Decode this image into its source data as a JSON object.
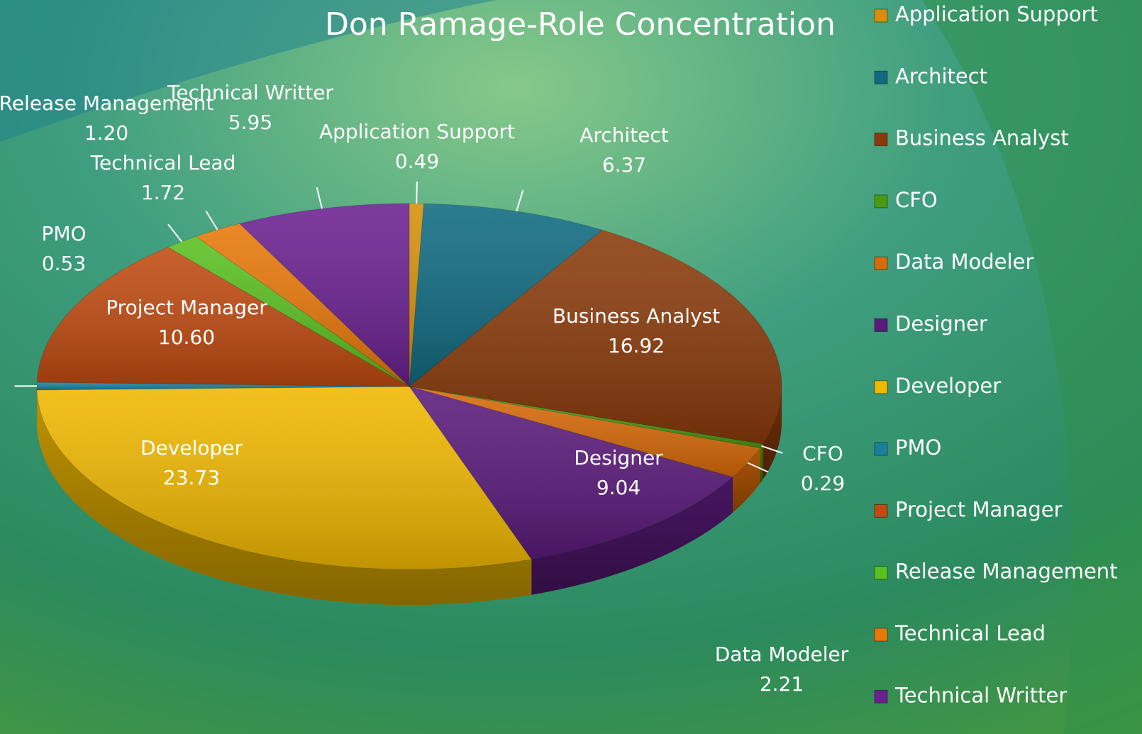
{
  "chart_data": {
    "type": "pie",
    "title": "Don Ramage-Role Concentration",
    "categories": [
      "Application Support",
      "Architect",
      "Business Analyst",
      "CFO",
      "Data Modeler",
      "Designer",
      "Developer",
      "PMO",
      "Project Manager",
      "Release Management",
      "Technical Lead",
      "Technical Writter"
    ],
    "values": [
      0.49,
      6.37,
      16.92,
      0.29,
      2.21,
      9.04,
      23.73,
      0.53,
      10.6,
      1.2,
      1.72,
      5.95
    ],
    "value_labels": [
      "0.49",
      "6.37",
      "16.92",
      "0.29",
      "2.21",
      "9.04",
      "23.73",
      "0.53",
      "10.60",
      "1.20",
      "1.72",
      "5.95"
    ],
    "colors": [
      "#d4900a",
      "#0f6a80",
      "#8a3a0a",
      "#4a9a10",
      "#d86a08",
      "#5a1a7a",
      "#f0b800",
      "#1a80a0",
      "#c04a10",
      "#5ac020",
      "#e87808",
      "#6a2090"
    ],
    "legend": "right"
  }
}
